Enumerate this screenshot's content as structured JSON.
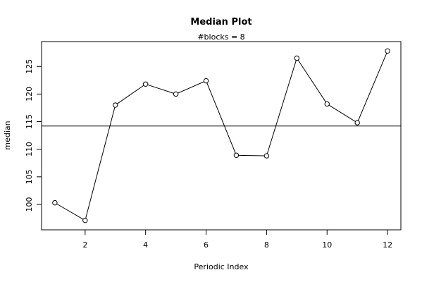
{
  "chart_data": {
    "type": "line",
    "title": "Median Plot",
    "subtitle": "#blocks =  8",
    "xlabel": "Periodic Index",
    "ylabel": "median",
    "x": [
      1,
      2,
      3,
      4,
      5,
      6,
      7,
      8,
      9,
      10,
      11,
      12
    ],
    "series": [
      {
        "values": [
          100.3,
          97.1,
          118.0,
          121.8,
          120.0,
          122.4,
          108.9,
          108.8,
          126.5,
          118.2,
          114.8,
          127.8
        ]
      }
    ],
    "reference_line": {
      "y": 114.2
    },
    "xticks": [
      2,
      4,
      6,
      8,
      10,
      12
    ],
    "yticks": [
      100,
      105,
      110,
      115,
      120,
      125
    ],
    "xlim": [
      0.56,
      12.44
    ],
    "ylim": [
      95.4,
      129.5
    ],
    "grid": false,
    "marker": "open-circle"
  }
}
